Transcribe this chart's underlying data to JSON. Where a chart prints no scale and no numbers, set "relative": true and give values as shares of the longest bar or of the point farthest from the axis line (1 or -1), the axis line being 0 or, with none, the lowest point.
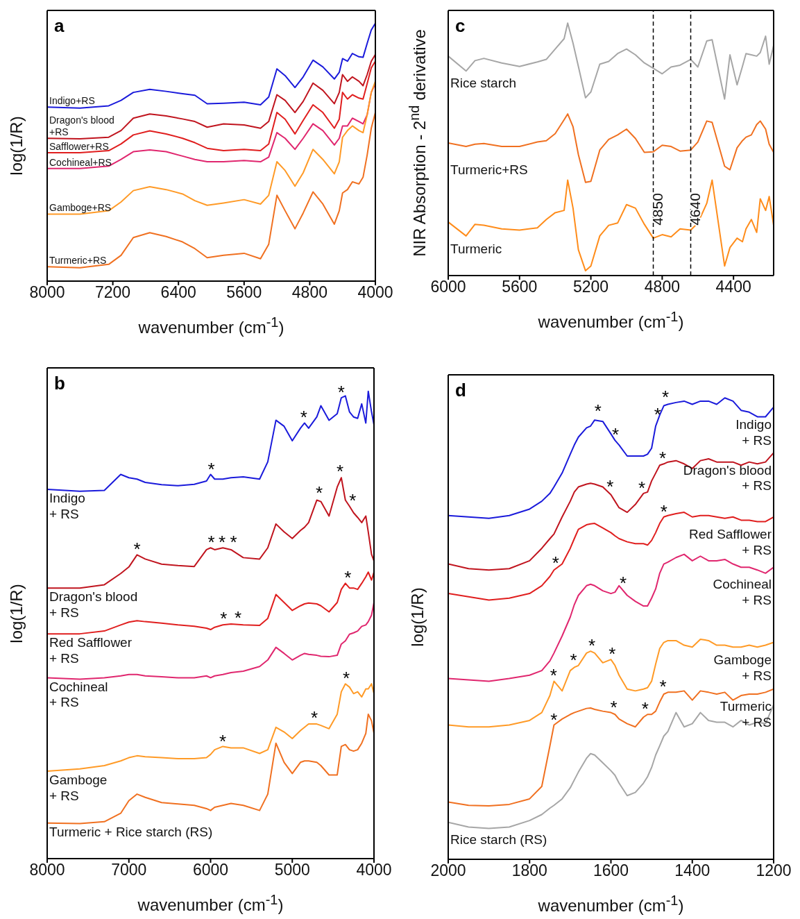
{
  "chart_data": [
    {
      "type": "line",
      "title": "a",
      "xlabel": "wavenumber (cm$^{-1}$)",
      "ylabel": "log(1/R)",
      "relative": true,
      "tick_labels": "x",
      "marker": "none",
      "xlim": [
        8000,
        4000
      ],
      "xticks": [
        8000,
        7200,
        6400,
        5600,
        4800,
        4000
      ],
      "x": [
        8000,
        7600,
        7250,
        7100,
        6950,
        6750,
        6550,
        6350,
        6200,
        6050,
        5850,
        5600,
        5400,
        5300,
        5200,
        5100,
        4980,
        4880,
        4760,
        4640,
        4500,
        4440,
        4400,
        4340,
        4280,
        4200,
        4150,
        4100,
        4050,
        4000
      ],
      "series": [
        {
          "name": "Indigo+RS",
          "color": "#1a1adb",
          "values": [
            0.675,
            0.671,
            0.68,
            0.701,
            0.732,
            0.744,
            0.736,
            0.727,
            0.721,
            0.688,
            0.69,
            0.694,
            0.684,
            0.714,
            0.823,
            0.797,
            0.751,
            0.792,
            0.857,
            0.831,
            0.784,
            0.81,
            0.863,
            0.853,
            0.883,
            0.87,
            0.868,
            0.922,
            0.974,
            1.0
          ]
        },
        {
          "name": "Dragon's blood\n+RS",
          "color": "#c0141e",
          "values": [
            0.554,
            0.552,
            0.558,
            0.584,
            0.632,
            0.648,
            0.641,
            0.629,
            0.619,
            0.597,
            0.61,
            0.606,
            0.593,
            0.619,
            0.723,
            0.701,
            0.654,
            0.697,
            0.768,
            0.74,
            0.688,
            0.732,
            0.801,
            0.775,
            0.792,
            0.775,
            0.758,
            0.801,
            0.853,
            0.879
          ]
        },
        {
          "name": "Safflower+RS",
          "color": "#e01e1e",
          "values": [
            0.498,
            0.498,
            0.506,
            0.532,
            0.567,
            0.583,
            0.571,
            0.554,
            0.537,
            0.515,
            0.506,
            0.511,
            0.506,
            0.532,
            0.654,
            0.628,
            0.571,
            0.623,
            0.684,
            0.654,
            0.593,
            0.628,
            0.732,
            0.706,
            0.723,
            0.71,
            0.706,
            0.766,
            0.827,
            0.853
          ]
        },
        {
          "name": "Cochineal+RS",
          "color": "#e0266e",
          "values": [
            0.437,
            0.437,
            0.446,
            0.472,
            0.502,
            0.509,
            0.502,
            0.485,
            0.472,
            0.463,
            0.463,
            0.468,
            0.463,
            0.481,
            0.576,
            0.554,
            0.511,
            0.554,
            0.61,
            0.584,
            0.528,
            0.554,
            0.602,
            0.602,
            0.632,
            0.619,
            0.61,
            0.645,
            0.732,
            0.766
          ]
        },
        {
          "name": "Gamboge+RS",
          "color": "#ff9a26",
          "values": [
            0.26,
            0.26,
            0.273,
            0.307,
            0.351,
            0.366,
            0.355,
            0.338,
            0.312,
            0.294,
            0.303,
            0.316,
            0.299,
            0.333,
            0.463,
            0.429,
            0.368,
            0.42,
            0.511,
            0.472,
            0.416,
            0.463,
            0.558,
            0.584,
            0.602,
            0.584,
            0.576,
            0.645,
            0.732,
            0.775
          ]
        },
        {
          "name": "Turmeric+RS",
          "color": "#f07020",
          "values": [
            0.056,
            0.052,
            0.065,
            0.1,
            0.169,
            0.188,
            0.173,
            0.152,
            0.126,
            0.091,
            0.1,
            0.108,
            0.087,
            0.143,
            0.333,
            0.273,
            0.203,
            0.264,
            0.346,
            0.299,
            0.221,
            0.273,
            0.342,
            0.355,
            0.385,
            0.377,
            0.403,
            0.489,
            0.593,
            0.654
          ]
        }
      ]
    },
    {
      "type": "line",
      "title": "c",
      "xlabel": "wavenumber (cm$^{-1}$)",
      "ylabel": "NIR Absorption - 2$^{nd}$ derivative",
      "relative": true,
      "tick_labels": "x",
      "marker": "none",
      "xlim": [
        6000,
        4175
      ],
      "xticks": [
        6000,
        5600,
        5200,
        4800,
        4400
      ],
      "x": [
        6000,
        5900,
        5850,
        5800,
        5700,
        5600,
        5500,
        5450,
        5400,
        5350,
        5330,
        5300,
        5270,
        5230,
        5200,
        5150,
        5100,
        5050,
        5000,
        4950,
        4900,
        4850,
        4800,
        4750,
        4700,
        4640,
        4600,
        4550,
        4520,
        4450,
        4420,
        4380,
        4350,
        4330,
        4300,
        4270,
        4250,
        4220,
        4200,
        4175
      ],
      "series": [
        {
          "name": "Rice starch",
          "color": "#a6a6a6",
          "values": [
            0.869,
            0.81,
            0.851,
            0.86,
            0.842,
            0.828,
            0.846,
            0.856,
            0.897,
            0.938,
            1.0,
            0.92,
            0.828,
            0.704,
            0.727,
            0.837,
            0.848,
            0.879,
            0.897,
            0.874,
            0.842,
            0.821,
            0.799,
            0.826,
            0.833,
            0.856,
            0.826,
            0.929,
            0.934,
            0.699,
            0.874,
            0.755,
            0.828,
            0.879,
            0.874,
            0.869,
            0.883,
            0.948,
            0.837,
            0.911
          ]
        },
        {
          "name": "Turmeric+RS",
          "color": "#f07020",
          "values": [
            0.525,
            0.511,
            0.52,
            0.523,
            0.511,
            0.511,
            0.529,
            0.534,
            0.562,
            0.617,
            0.64,
            0.589,
            0.479,
            0.369,
            0.373,
            0.497,
            0.539,
            0.557,
            0.58,
            0.543,
            0.488,
            0.49,
            0.516,
            0.511,
            0.493,
            0.497,
            0.529,
            0.612,
            0.607,
            0.433,
            0.419,
            0.506,
            0.534,
            0.548,
            0.557,
            0.598,
            0.612,
            0.58,
            0.52,
            0.488
          ]
        },
        {
          "name": "Turmeric",
          "color": "#ff8c1a",
          "values": [
            0.212,
            0.157,
            0.203,
            0.199,
            0.185,
            0.18,
            0.189,
            0.222,
            0.249,
            0.258,
            0.378,
            0.267,
            0.102,
            0.019,
            0.038,
            0.157,
            0.199,
            0.208,
            0.281,
            0.267,
            0.203,
            0.148,
            0.162,
            0.153,
            0.185,
            0.18,
            0.208,
            0.286,
            0.378,
            0.038,
            0.111,
            0.148,
            0.134,
            0.185,
            0.222,
            0.171,
            0.304,
            0.258,
            0.313,
            0.199
          ]
        }
      ],
      "ref_lines": [
        {
          "axis": "x",
          "value": 4850,
          "label": "4850",
          "color": "#000000",
          "line_style": "dashed"
        },
        {
          "axis": "x",
          "value": 4640,
          "label": "4640",
          "color": "#000000",
          "line_style": "dashed"
        }
      ]
    },
    {
      "type": "line",
      "title": "b",
      "xlabel": "wavenumber (cm$^{-1}$)",
      "ylabel": "log(1/R)",
      "relative": true,
      "tick_labels": "x",
      "marker": "none",
      "xlim": [
        8000,
        4000
      ],
      "xticks": [
        8000,
        7000,
        6000,
        5000,
        4000
      ],
      "x": [
        8000,
        7600,
        7300,
        7100,
        7000,
        6900,
        6800,
        6600,
        6400,
        6200,
        6050,
        6000,
        5950,
        5850,
        5750,
        5600,
        5400,
        5300,
        5200,
        5100,
        5000,
        4900,
        4850,
        4800,
        4700,
        4650,
        4550,
        4450,
        4400,
        4350,
        4300,
        4250,
        4200,
        4150,
        4100,
        4070,
        4030,
        4000
      ],
      "series": [
        {
          "name": "Indigo\n+ RS",
          "color": "#1a1adb",
          "values": [
            0.79,
            0.786,
            0.788,
            0.822,
            0.815,
            0.812,
            0.805,
            0.8,
            0.798,
            0.801,
            0.808,
            0.822,
            0.812,
            0.812,
            0.815,
            0.817,
            0.812,
            0.849,
            0.938,
            0.925,
            0.894,
            0.921,
            0.932,
            0.921,
            0.945,
            0.969,
            0.938,
            0.952,
            0.986,
            0.99,
            0.956,
            0.945,
            0.942,
            0.973,
            0.932,
            1.0,
            0.956,
            0.928
          ]
        },
        {
          "name": "Dragon's blood\n+ RS",
          "color": "#c0141e",
          "values": [
            0.579,
            0.579,
            0.586,
            0.61,
            0.624,
            0.65,
            0.641,
            0.63,
            0.627,
            0.625,
            0.661,
            0.665,
            0.661,
            0.665,
            0.661,
            0.644,
            0.641,
            0.665,
            0.716,
            0.699,
            0.685,
            0.702,
            0.709,
            0.719,
            0.767,
            0.764,
            0.733,
            0.795,
            0.815,
            0.767,
            0.754,
            0.74,
            0.73,
            0.719,
            0.733,
            0.699,
            0.651,
            0.637
          ]
        },
        {
          "name": "Red Safflower\n+ RS",
          "color": "#e01e1e",
          "values": [
            0.481,
            0.481,
            0.487,
            0.5,
            0.506,
            0.509,
            0.507,
            0.504,
            0.5,
            0.497,
            0.493,
            0.49,
            0.495,
            0.5,
            0.502,
            0.5,
            0.499,
            0.514,
            0.565,
            0.548,
            0.531,
            0.541,
            0.545,
            0.547,
            0.545,
            0.541,
            0.528,
            0.548,
            0.576,
            0.589,
            0.579,
            0.579,
            0.576,
            0.589,
            0.603,
            0.613,
            0.596,
            0.613
          ]
        },
        {
          "name": "Cochineal\n+ RS",
          "color": "#e0266e",
          "values": [
            0.387,
            0.384,
            0.387,
            0.391,
            0.394,
            0.394,
            0.391,
            0.389,
            0.387,
            0.387,
            0.391,
            0.387,
            0.391,
            0.394,
            0.398,
            0.401,
            0.411,
            0.425,
            0.452,
            0.439,
            0.425,
            0.435,
            0.439,
            0.437,
            0.435,
            0.433,
            0.432,
            0.435,
            0.459,
            0.466,
            0.48,
            0.483,
            0.487,
            0.497,
            0.5,
            0.507,
            0.521,
            0.548
          ]
        },
        {
          "name": "Gamboge\n+ RS",
          "color": "#ff9a26",
          "values": [
            0.187,
            0.192,
            0.199,
            0.209,
            0.216,
            0.22,
            0.218,
            0.216,
            0.214,
            0.214,
            0.216,
            0.223,
            0.233,
            0.24,
            0.237,
            0.237,
            0.225,
            0.233,
            0.281,
            0.271,
            0.257,
            0.274,
            0.281,
            0.288,
            0.288,
            0.285,
            0.278,
            0.309,
            0.357,
            0.374,
            0.367,
            0.353,
            0.357,
            0.346,
            0.363,
            0.363,
            0.374,
            0.353
          ]
        },
        {
          "name": "Turmeric + Rice starch (RS)",
          "color": "#f07020",
          "values": [
            0.076,
            0.075,
            0.079,
            0.097,
            0.124,
            0.138,
            0.131,
            0.12,
            0.117,
            0.114,
            0.107,
            0.103,
            0.11,
            0.114,
            0.118,
            0.114,
            0.103,
            0.138,
            0.247,
            0.206,
            0.182,
            0.206,
            0.209,
            0.209,
            0.206,
            0.199,
            0.179,
            0.179,
            0.24,
            0.244,
            0.233,
            0.23,
            0.233,
            0.247,
            0.268,
            0.309,
            0.295,
            0.268
          ]
        }
      ],
      "annotations": [
        {
          "text": "*",
          "x": 5990,
          "y": 0.822
        },
        {
          "text": "*",
          "x": 4860,
          "y": 0.932
        },
        {
          "text": "*",
          "x": 4400,
          "y": 0.986
        },
        {
          "text": "*",
          "x": 6900,
          "y": 0.65
        },
        {
          "text": "*",
          "x": 5990,
          "y": 0.665
        },
        {
          "text": "*",
          "x": 5860,
          "y": 0.665
        },
        {
          "text": "*",
          "x": 5720,
          "y": 0.665
        },
        {
          "text": "*",
          "x": 4670,
          "y": 0.771
        },
        {
          "text": "*",
          "x": 4415,
          "y": 0.817
        },
        {
          "text": "*",
          "x": 4260,
          "y": 0.754
        },
        {
          "text": "*",
          "x": 5840,
          "y": 0.502
        },
        {
          "text": "*",
          "x": 5665,
          "y": 0.504
        },
        {
          "text": "*",
          "x": 4320,
          "y": 0.589
        },
        {
          "text": "*",
          "x": 5850,
          "y": 0.239
        },
        {
          "text": "*",
          "x": 4730,
          "y": 0.29
        },
        {
          "text": "*",
          "x": 4340,
          "y": 0.374
        }
      ]
    },
    {
      "type": "line",
      "title": "d",
      "xlabel": "wavenumber (cm$^{-1}$)",
      "ylabel": "log(1/R)",
      "relative": true,
      "tick_labels": "x",
      "marker": "none",
      "xlim": [
        2000,
        1200
      ],
      "xticks": [
        2000,
        1800,
        1600,
        1400,
        1200
      ],
      "x": [
        2000,
        1950,
        1900,
        1850,
        1800,
        1770,
        1750,
        1740,
        1720,
        1700,
        1690,
        1680,
        1660,
        1650,
        1640,
        1620,
        1600,
        1590,
        1580,
        1560,
        1540,
        1520,
        1510,
        1500,
        1490,
        1480,
        1470,
        1460,
        1440,
        1420,
        1400,
        1380,
        1360,
        1340,
        1320,
        1300,
        1280,
        1260,
        1240,
        1220,
        1200
      ],
      "series": [
        {
          "name": "Indigo\n+ RS",
          "color": "#1a1adb",
          "values": [
            0.745,
            0.742,
            0.739,
            0.745,
            0.759,
            0.776,
            0.793,
            0.807,
            0.837,
            0.878,
            0.898,
            0.915,
            0.935,
            0.939,
            0.952,
            0.949,
            0.922,
            0.908,
            0.898,
            0.874,
            0.874,
            0.874,
            0.878,
            0.891,
            0.939,
            0.963,
            0.983,
            0.986,
            0.99,
            0.993,
            0.986,
            0.993,
            0.993,
            0.986,
            1.0,
            0.993,
            0.973,
            0.969,
            0.959,
            0.959,
            0.98
          ]
        },
        {
          "name": "Dragon's blood\n+ RS",
          "color": "#c0141e",
          "values": [
            0.64,
            0.63,
            0.627,
            0.63,
            0.647,
            0.674,
            0.695,
            0.705,
            0.742,
            0.776,
            0.796,
            0.807,
            0.813,
            0.815,
            0.813,
            0.807,
            0.79,
            0.776,
            0.762,
            0.752,
            0.769,
            0.793,
            0.796,
            0.82,
            0.837,
            0.854,
            0.857,
            0.861,
            0.864,
            0.857,
            0.847,
            0.864,
            0.868,
            0.861,
            0.861,
            0.861,
            0.854,
            0.861,
            0.857,
            0.861,
            0.881
          ]
        },
        {
          "name": "Red Safflower\n+ RS",
          "color": "#e01e1e",
          "values": [
            0.576,
            0.569,
            0.562,
            0.566,
            0.576,
            0.593,
            0.613,
            0.627,
            0.64,
            0.674,
            0.695,
            0.715,
            0.725,
            0.727,
            0.728,
            0.718,
            0.708,
            0.701,
            0.695,
            0.688,
            0.684,
            0.684,
            0.681,
            0.691,
            0.708,
            0.728,
            0.742,
            0.745,
            0.749,
            0.752,
            0.742,
            0.745,
            0.745,
            0.742,
            0.739,
            0.742,
            0.735,
            0.735,
            0.732,
            0.732,
            0.742
          ]
        },
        {
          "name": "Cochineal\n+ RS",
          "color": "#e0266e",
          "values": [
            0.392,
            0.389,
            0.386,
            0.392,
            0.399,
            0.409,
            0.43,
            0.447,
            0.484,
            0.525,
            0.552,
            0.572,
            0.593,
            0.596,
            0.593,
            0.582,
            0.576,
            0.579,
            0.593,
            0.572,
            0.559,
            0.549,
            0.549,
            0.566,
            0.586,
            0.62,
            0.64,
            0.644,
            0.654,
            0.661,
            0.647,
            0.657,
            0.647,
            0.647,
            0.65,
            0.64,
            0.633,
            0.633,
            0.627,
            0.62,
            0.633
          ]
        },
        {
          "name": "Gamboge\n+ RS",
          "color": "#ff9a26",
          "values": [
            0.291,
            0.287,
            0.287,
            0.291,
            0.301,
            0.318,
            0.355,
            0.386,
            0.365,
            0.409,
            0.416,
            0.42,
            0.447,
            0.451,
            0.447,
            0.426,
            0.433,
            0.42,
            0.399,
            0.369,
            0.365,
            0.369,
            0.372,
            0.386,
            0.423,
            0.457,
            0.47,
            0.474,
            0.474,
            0.464,
            0.46,
            0.477,
            0.474,
            0.464,
            0.464,
            0.46,
            0.46,
            0.464,
            0.46,
            0.464,
            0.47
          ]
        },
        {
          "name": "Turmeric\n+ RS",
          "color": "#f07020",
          "values": [
            0.124,
            0.117,
            0.116,
            0.119,
            0.131,
            0.158,
            0.246,
            0.291,
            0.304,
            0.314,
            0.318,
            0.321,
            0.327,
            0.328,
            0.325,
            0.321,
            0.318,
            0.314,
            0.304,
            0.294,
            0.287,
            0.308,
            0.314,
            0.314,
            0.321,
            0.341,
            0.358,
            0.362,
            0.362,
            0.365,
            0.345,
            0.365,
            0.362,
            0.358,
            0.362,
            0.345,
            0.355,
            0.358,
            0.358,
            0.362,
            0.369
          ]
        },
        {
          "name": "Rice starch (RS)",
          "color": "#a6a6a6",
          "values": [
            0.08,
            0.07,
            0.067,
            0.07,
            0.084,
            0.097,
            0.111,
            0.117,
            0.131,
            0.155,
            0.172,
            0.189,
            0.219,
            0.229,
            0.226,
            0.209,
            0.192,
            0.182,
            0.165,
            0.138,
            0.145,
            0.165,
            0.179,
            0.199,
            0.226,
            0.246,
            0.267,
            0.277,
            0.318,
            0.287,
            0.294,
            0.318,
            0.301,
            0.297,
            0.297,
            0.287,
            0.301,
            0.291,
            0.297,
            0.294,
            0.335
          ]
        }
      ],
      "annotations": [
        {
          "text": "*",
          "x": 1632,
          "y": 0.959
        },
        {
          "text": "*",
          "x": 1589,
          "y": 0.908
        },
        {
          "text": "*",
          "x": 1485,
          "y": 0.952
        },
        {
          "text": "*",
          "x": 1466,
          "y": 0.99
        },
        {
          "text": "*",
          "x": 1602,
          "y": 0.796
        },
        {
          "text": "*",
          "x": 1524,
          "y": 0.793
        },
        {
          "text": "*",
          "x": 1473,
          "y": 0.857
        },
        {
          "text": "*",
          "x": 1736,
          "y": 0.63
        },
        {
          "text": "*",
          "x": 1470,
          "y": 0.742
        },
        {
          "text": "*",
          "x": 1570,
          "y": 0.586
        },
        {
          "text": "*",
          "x": 1741,
          "y": 0.386
        },
        {
          "text": "*",
          "x": 1692,
          "y": 0.42
        },
        {
          "text": "*",
          "x": 1647,
          "y": 0.451
        },
        {
          "text": "*",
          "x": 1597,
          "y": 0.433
        },
        {
          "text": "*",
          "x": 1740,
          "y": 0.291
        },
        {
          "text": "*",
          "x": 1593,
          "y": 0.318
        },
        {
          "text": "*",
          "x": 1516,
          "y": 0.314
        },
        {
          "text": "*",
          "x": 1472,
          "y": 0.362
        }
      ]
    }
  ]
}
